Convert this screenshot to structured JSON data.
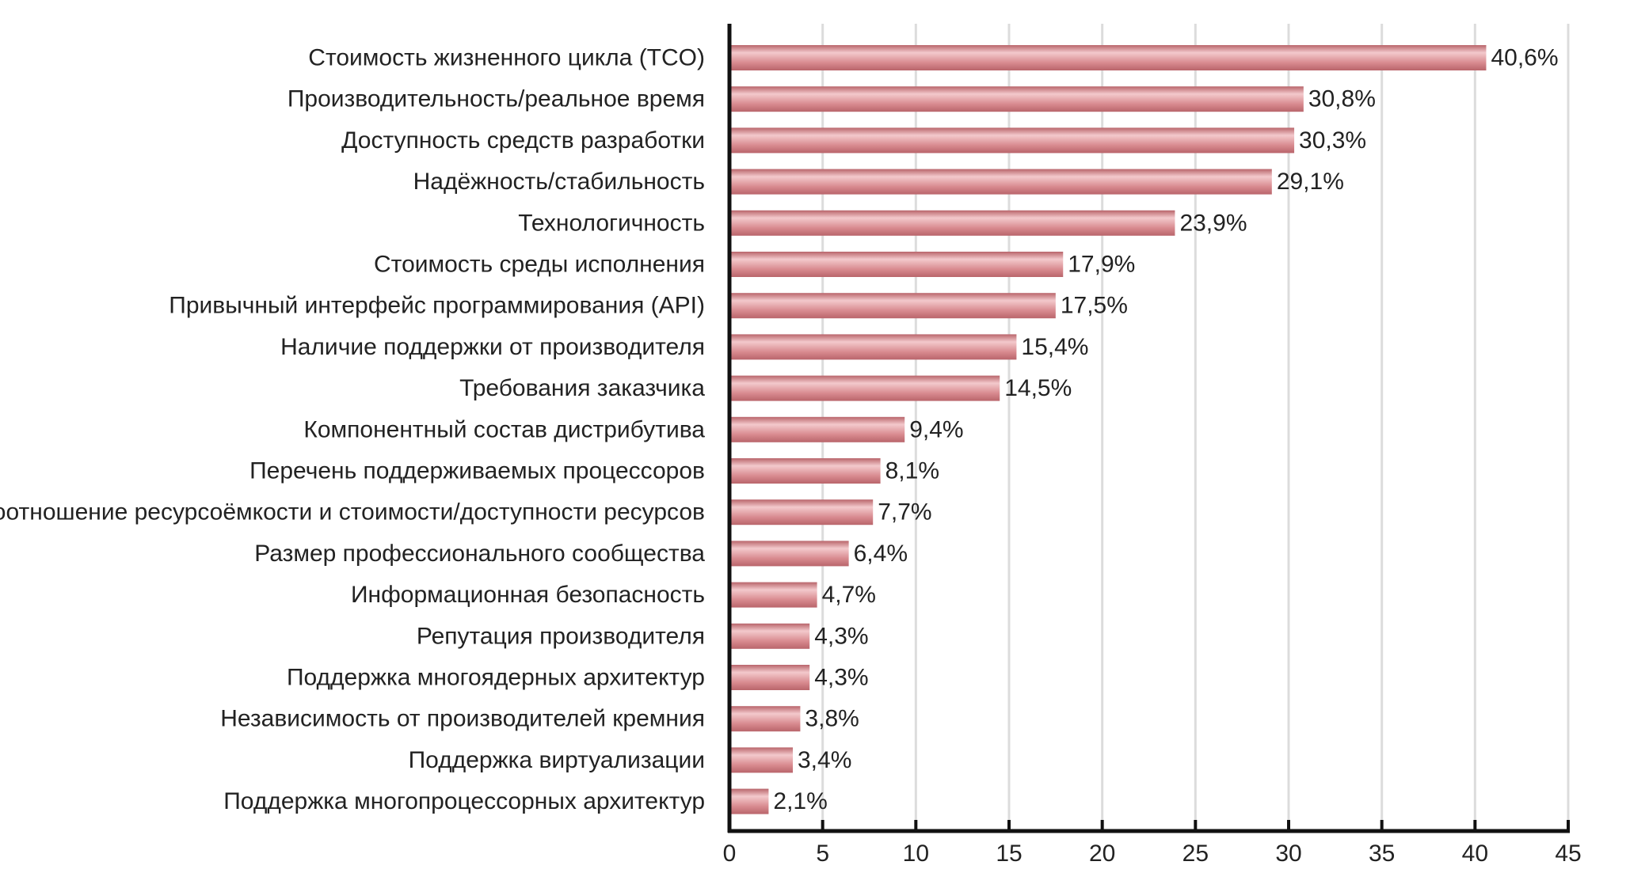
{
  "chart_data": {
    "type": "bar",
    "orientation": "horizontal",
    "title": "",
    "xlabel": "",
    "ylabel": "",
    "xlim": [
      0,
      45
    ],
    "x_ticks": [
      0,
      5,
      10,
      15,
      20,
      25,
      30,
      35,
      40,
      45
    ],
    "grid": "vertical",
    "legend": "none",
    "bar_color": "#d88a8f",
    "bar_highlight": "#f3c9cc",
    "bar_shadow": "#b9656b",
    "grid_color": "#dcdcdc",
    "axis_color": "#111111",
    "categories": [
      "Стоимость жизненного цикла (TCO)",
      "Производительность/реальное время",
      "Доступность средств разработки",
      "Надёжность/стабильность",
      "Технологичность",
      "Стоимость среды исполнения",
      "Привычный интерфейс программирования (API)",
      "Наличие поддержки от производителя",
      "Требования заказчика",
      "Компонентный состав дистрибутива",
      "Перечень поддерживаемых процессоров",
      "Соотношение ресурсоёмкости и стоимости/доступности ресурсов",
      "Размер профессионального сообщества",
      "Информационная безопасность",
      "Репутация производителя",
      "Поддержка многоядерных архитектур",
      "Независимость от производителей кремния",
      "Поддержка виртуализации",
      "Поддержка многопроцессорных архитектур"
    ],
    "values": [
      40.6,
      30.8,
      30.3,
      29.1,
      23.9,
      17.9,
      17.5,
      15.4,
      14.5,
      9.4,
      8.1,
      7.7,
      6.4,
      4.7,
      4.3,
      4.3,
      3.8,
      3.4,
      2.1
    ],
    "value_labels": [
      "40,6%",
      "30,8%",
      "30,3%",
      "29,1%",
      "23,9%",
      "17,9%",
      "17,5%",
      "15,4%",
      "14,5%",
      "9,4%",
      "8,1%",
      "7,7%",
      "6,4%",
      "4,7%",
      "4,3%",
      "4,3%",
      "3,8%",
      "3,4%",
      "2,1%"
    ]
  }
}
